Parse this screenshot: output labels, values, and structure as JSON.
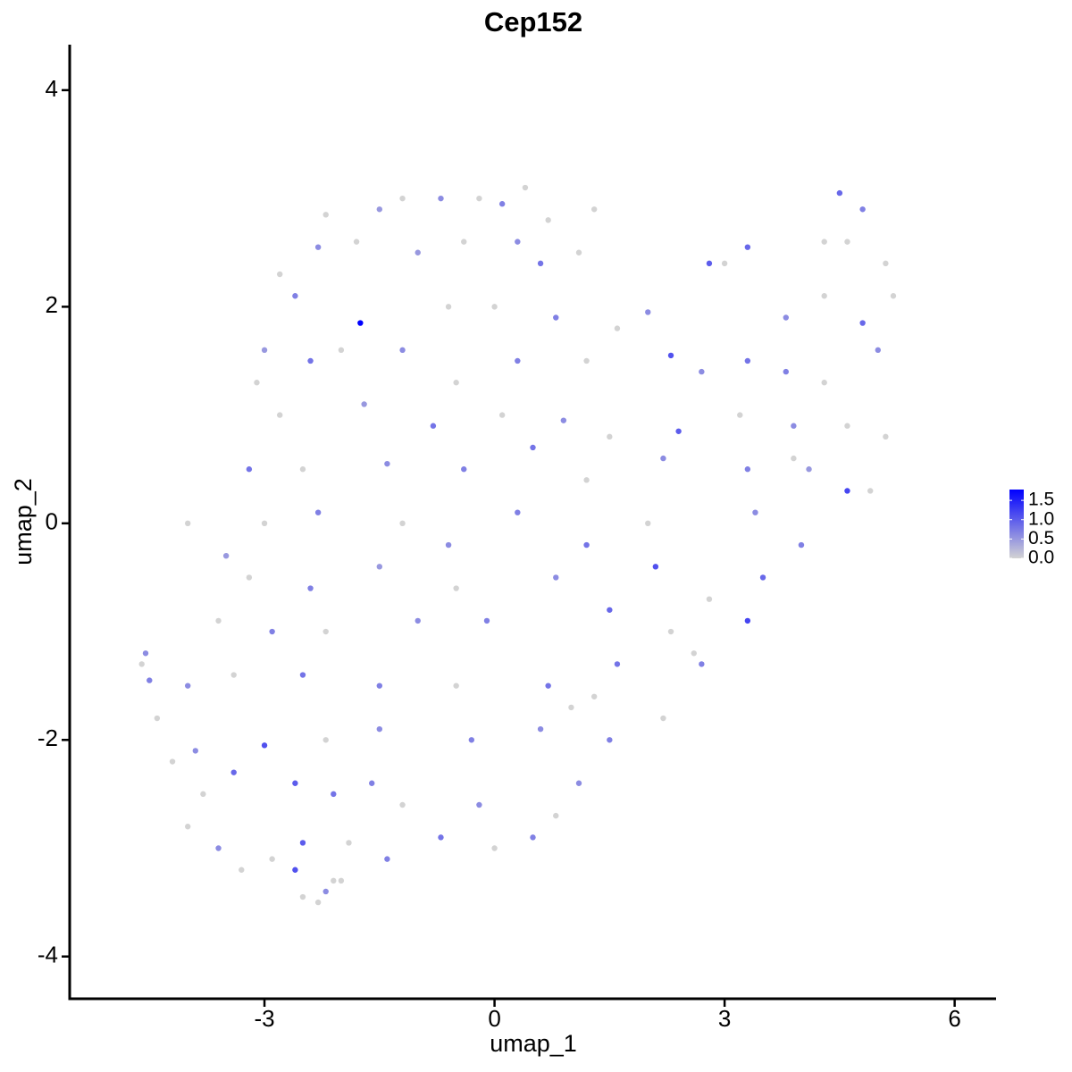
{
  "chart_data": {
    "type": "scatter",
    "title": "Cep152",
    "x_label": "umap_1",
    "y_label": "umap_2",
    "xlim": [
      -5.54,
      6.54
    ],
    "ylim": [
      -4.39,
      4.42
    ],
    "xticks": [
      -3,
      0,
      3,
      6
    ],
    "yticks": [
      -4,
      -2,
      0,
      2,
      4
    ],
    "low_color": "#d3d3d3",
    "high_color": "#0000ff",
    "color_lim": [
      0,
      1.78
    ],
    "color_ticks": [
      {
        "value": 0,
        "label": "0.0"
      },
      0.5,
      {
        "value": 1,
        "label": "1.0"
      },
      1.5
    ],
    "x": [
      -1.2,
      -0.7,
      -0.2,
      0.1,
      0.4,
      -1.5,
      -2.2,
      0.7,
      1.3,
      4.5,
      4.8,
      -2.3,
      -1.8,
      -1.0,
      -0.4,
      0.3,
      0.6,
      -2.8,
      4.3,
      4.6,
      3.3,
      2.8,
      3.0,
      5.1,
      1.1,
      -2.6,
      -1.75,
      -0.6,
      0,
      0.8,
      1.6,
      2.0,
      3.8,
      4.3,
      4.8,
      5.2,
      -3.0,
      -2.0,
      -2.4,
      -1.2,
      -0.5,
      0.3,
      1.2,
      2.3,
      2.7,
      3.3,
      3.8,
      4.3,
      5.0,
      -3.1,
      -2.8,
      -1.7,
      -0.8,
      0.1,
      0.9,
      1.5,
      2.4,
      3.2,
      3.9,
      4.6,
      5.1,
      -3.2,
      -2.5,
      -1.4,
      -0.4,
      0.5,
      1.2,
      2.2,
      3.3,
      4.1,
      4.6,
      4.9,
      -3.0,
      -2.3,
      -1.2,
      -0.6,
      0.3,
      1.2,
      2.0,
      3.4,
      4.0,
      3.9,
      -3.5,
      -4.0,
      -3.2,
      -2.4,
      -1.5,
      -0.5,
      0.8,
      2.1,
      3.5,
      2.8,
      -3.6,
      -2.9,
      -2.2,
      -1.0,
      -0.1,
      1.5,
      2.3,
      3.3,
      2.6,
      -4.6,
      -4.55,
      -4.5,
      -4.0,
      -3.4,
      -2.5,
      -1.5,
      -0.5,
      0.7,
      1.6,
      2.7,
      1.3,
      -4.2,
      -3.9,
      -3.0,
      -2.2,
      -1.5,
      -0.3,
      0.6,
      1.5,
      2.2,
      -4.4,
      1.0,
      -3.8,
      -3.4,
      -2.6,
      -2.1,
      -1.2,
      -0.2,
      0.8,
      1.1,
      -4.0,
      -1.6,
      -3.6,
      -2.9,
      -2.5,
      -1.9,
      -1.4,
      -0.7,
      0,
      0.5,
      -3.3,
      -2.6,
      -2.1,
      -2.5,
      -2.3,
      -2.2,
      -2.0
    ],
    "y": [
      3.0,
      3.0,
      3.0,
      2.95,
      3.1,
      2.9,
      2.85,
      2.8,
      2.9,
      3.05,
      2.9,
      2.55,
      2.6,
      2.5,
      2.6,
      2.6,
      2.4,
      2.3,
      2.6,
      2.6,
      2.55,
      2.4,
      2.4,
      2.4,
      2.5,
      2.1,
      1.85,
      2.0,
      2.0,
      1.9,
      1.8,
      1.95,
      1.9,
      2.1,
      1.85,
      2.1,
      1.6,
      1.6,
      1.5,
      1.6,
      1.3,
      1.5,
      1.5,
      1.55,
      1.4,
      1.5,
      1.4,
      1.3,
      1.6,
      1.3,
      1.0,
      1.1,
      0.9,
      1.0,
      0.95,
      0.8,
      0.85,
      1.0,
      0.9,
      0.9,
      0.8,
      0.5,
      0.5,
      0.55,
      0.5,
      0.7,
      0.4,
      0.6,
      0.5,
      0.5,
      0.3,
      0.3,
      0,
      0.1,
      0.0,
      -0.2,
      0.1,
      -0.2,
      0,
      0.1,
      -0.2,
      0.6,
      -0.3,
      0,
      -0.5,
      -0.6,
      -0.4,
      -0.6,
      -0.5,
      -0.4,
      -0.5,
      -0.7,
      -0.9,
      -1.0,
      -1.0,
      -0.9,
      -0.9,
      -0.8,
      -1.0,
      -0.9,
      -1.2,
      -1.3,
      -1.2,
      -1.45,
      -1.5,
      -1.4,
      -1.4,
      -1.5,
      -1.5,
      -1.5,
      -1.3,
      -1.3,
      -1.6,
      -2.2,
      -2.1,
      -2.05,
      -2.0,
      -1.9,
      -2.0,
      -1.9,
      -2.0,
      -1.8,
      -1.8,
      -1.7,
      -2.5,
      -2.3,
      -2.4,
      -2.5,
      -2.6,
      -2.6,
      -2.7,
      -2.4,
      -2.8,
      -2.4,
      -3.0,
      -3.1,
      -2.95,
      -2.95,
      -3.1,
      -2.9,
      -3.0,
      -2.9,
      -3.2,
      -3.2,
      -3.3,
      -3.45,
      -3.5,
      -3.4,
      -3.3
    ],
    "values": [
      0,
      0.6,
      0,
      0.7,
      0,
      0.5,
      0,
      0,
      0,
      0.9,
      0.7,
      0.6,
      0,
      0.5,
      0,
      0.6,
      0.8,
      0,
      0,
      0,
      0.9,
      1.0,
      0,
      0,
      0,
      0.7,
      1.78,
      0,
      0,
      0.7,
      0,
      0.6,
      0.6,
      0,
      0.9,
      0,
      0.5,
      0,
      0.8,
      0.6,
      0,
      0.7,
      0,
      1.1,
      0.6,
      0.8,
      0.7,
      0,
      0.6,
      0,
      0,
      0.5,
      0.8,
      0,
      0.6,
      0,
      1.0,
      0,
      0.6,
      0,
      0,
      0.8,
      0,
      0.6,
      0.7,
      0.8,
      0,
      0.6,
      0.7,
      0.5,
      1.2,
      0,
      0,
      0.7,
      0,
      0.6,
      0.7,
      0.8,
      0,
      0.6,
      0.7,
      0,
      0.5,
      0,
      0,
      0.7,
      0.5,
      0,
      0.6,
      1.1,
      0.9,
      0,
      0,
      0.7,
      0,
      0.6,
      0.7,
      0.9,
      0,
      1.2,
      0,
      0,
      0.6,
      0.7,
      0.6,
      0,
      0.8,
      0.7,
      0,
      0.8,
      0.8,
      0.7,
      0,
      0,
      0.6,
      1.1,
      0,
      0.6,
      0.7,
      0.6,
      0.7,
      0,
      0,
      0,
      0,
      0.9,
      1.0,
      0.8,
      0,
      0.6,
      0,
      0.6,
      0,
      0.7,
      0.6,
      0,
      1.0,
      0,
      0.7,
      0.8,
      0,
      0.7,
      0,
      1.1,
      0,
      0,
      0,
      0.6,
      0
    ]
  }
}
